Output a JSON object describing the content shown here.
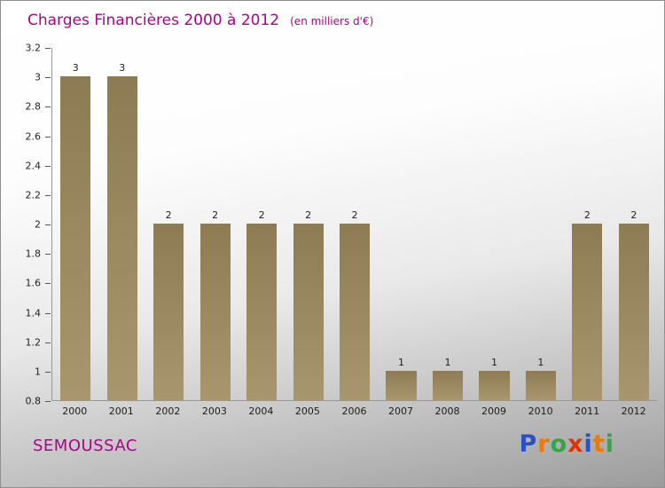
{
  "header": {
    "title": "Charges Financières 2000 à 2012",
    "subtitle": "(en milliers d'€)"
  },
  "footer": {
    "company": "SEMOUSSAC",
    "brand_name": "Proxiti",
    "brand_letters": [
      {
        "char": "P",
        "color": "#2b50c8"
      },
      {
        "char": "r",
        "color": "#f07800"
      },
      {
        "char": "o",
        "color": "#35a546"
      },
      {
        "char": "x",
        "color": "#e03400"
      },
      {
        "char": "i",
        "color": "#2b50c8"
      },
      {
        "char": "t",
        "color": "#f07800"
      },
      {
        "char": "i",
        "color": "#35a546"
      }
    ]
  },
  "chart_data": {
    "type": "bar",
    "title": "Charges Financières 2000 à 2012",
    "subtitle": "(en milliers d'€)",
    "categories": [
      "2000",
      "2001",
      "2002",
      "2003",
      "2004",
      "2005",
      "2006",
      "2007",
      "2008",
      "2009",
      "2010",
      "2011",
      "2012"
    ],
    "values": [
      3,
      3,
      2,
      2,
      2,
      2,
      2,
      1,
      1,
      1,
      1,
      2,
      2
    ],
    "ylabel": "",
    "xlabel": "",
    "ylim": [
      0.8,
      3.2
    ],
    "ytick_step": 0.2,
    "grid": false,
    "legend": false,
    "value_labels_shown": true,
    "accent_color": "#b0008c",
    "bar_gradient": [
      "#8d7b53",
      "#a8966f"
    ]
  }
}
